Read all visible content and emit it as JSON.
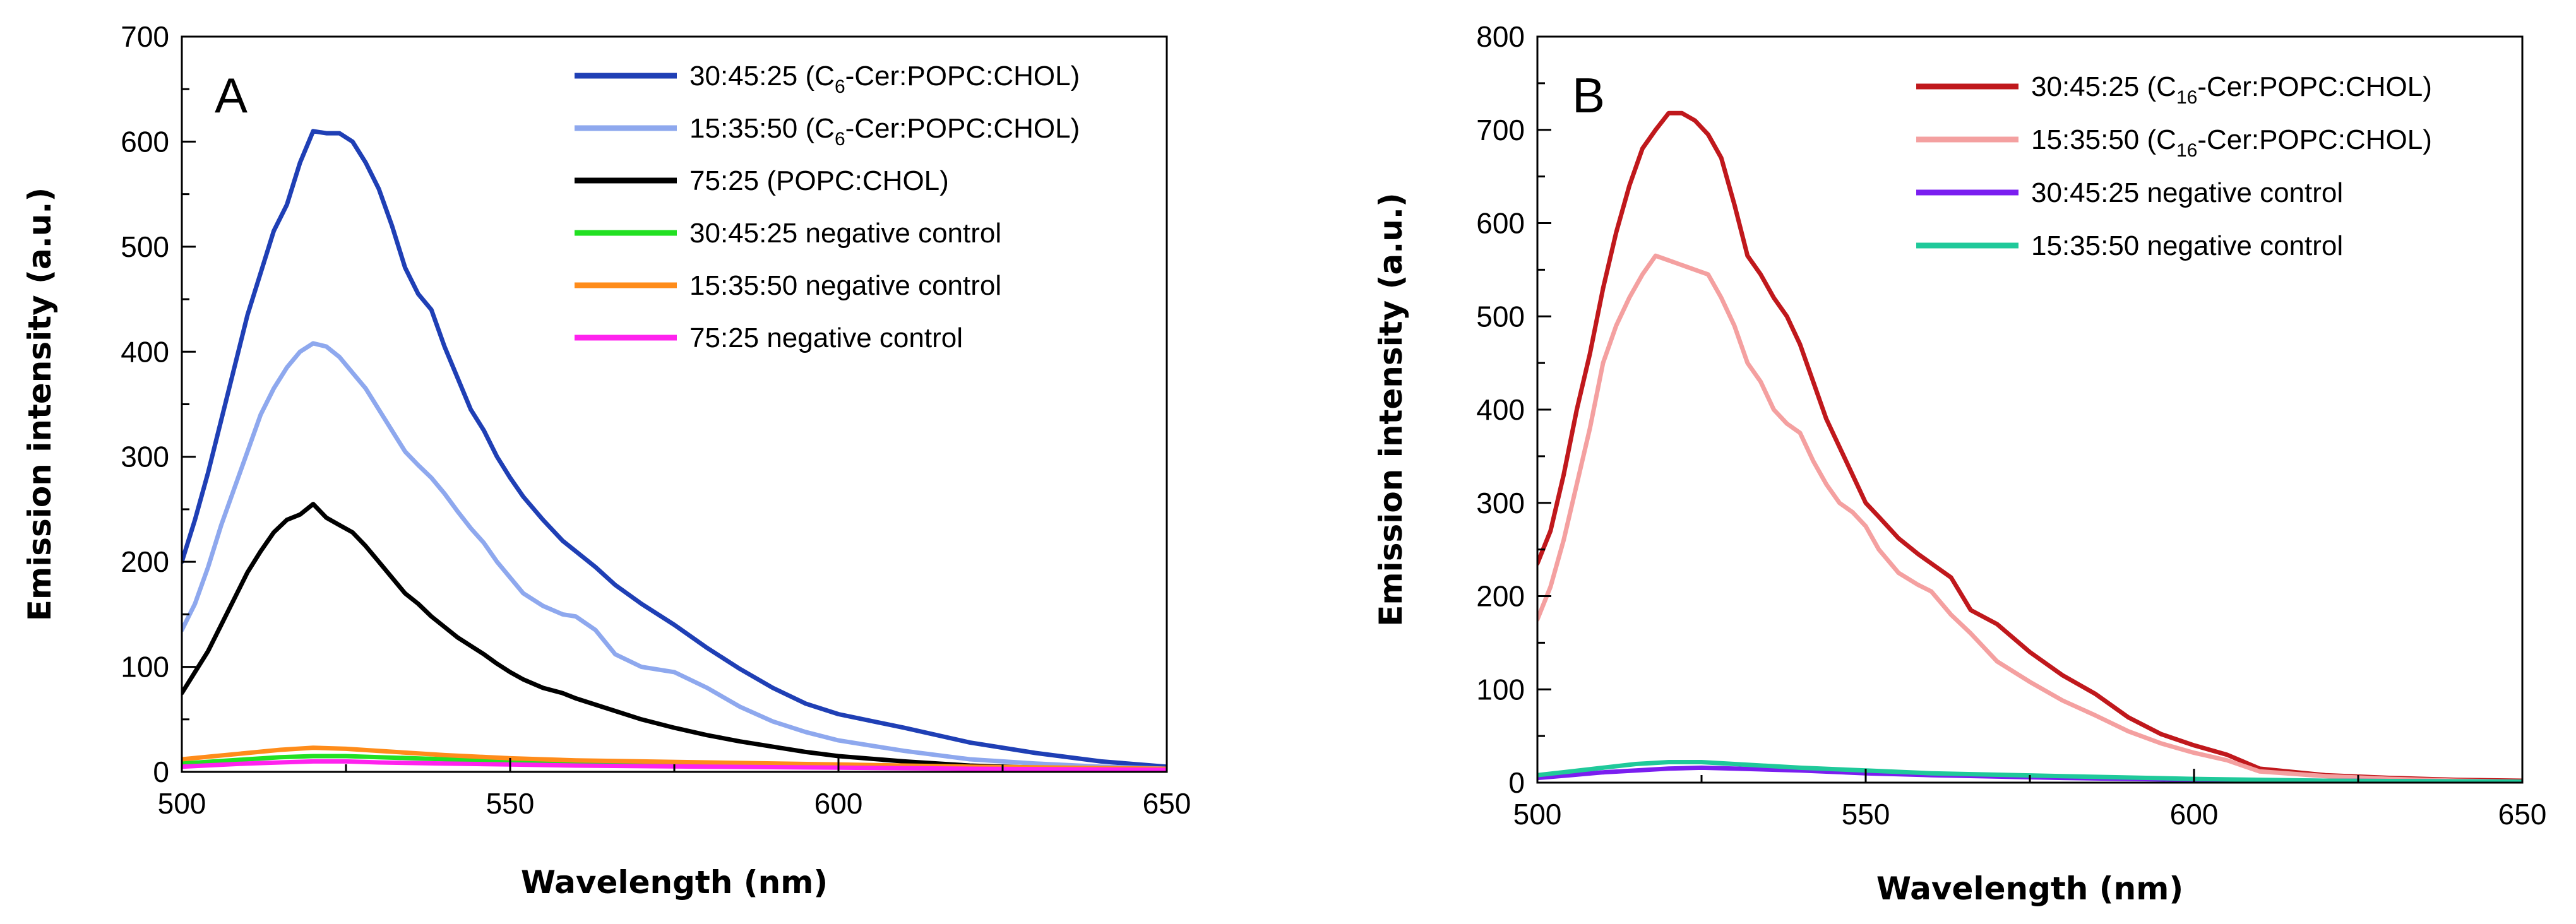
{
  "chart_data": [
    {
      "type": "line",
      "panel_label": "A",
      "xlabel": "Wavelength (nm)",
      "ylabel": "Emission intensity (a.u.)",
      "xlim": [
        500,
        650
      ],
      "ylim": [
        0,
        700
      ],
      "x_ticks": [
        500,
        550,
        600,
        650
      ],
      "y_ticks": [
        0,
        100,
        200,
        300,
        400,
        500,
        600,
        700
      ],
      "legend_position": "top-right",
      "grid": false,
      "series": [
        {
          "name": "30:45:25 (C6-Cer:POPC:CHOL)",
          "label_parts": [
            "30:45:25 (C",
            "6",
            "-Cer:POPC:CHOL)"
          ],
          "color": "#1f3fb5",
          "x": [
            500,
            502,
            504,
            506,
            508,
            510,
            512,
            514,
            516,
            518,
            520,
            522,
            524,
            526,
            528,
            530,
            532,
            534,
            536,
            538,
            540,
            542,
            544,
            546,
            548,
            550,
            552,
            555,
            558,
            560,
            563,
            566,
            570,
            575,
            580,
            585,
            590,
            595,
            600,
            610,
            620,
            630,
            640,
            650
          ],
          "y": [
            200,
            240,
            285,
            335,
            385,
            435,
            475,
            515,
            540,
            580,
            610,
            608,
            608,
            600,
            580,
            555,
            520,
            480,
            455,
            440,
            405,
            375,
            345,
            325,
            300,
            280,
            262,
            240,
            220,
            210,
            195,
            178,
            160,
            140,
            118,
            98,
            80,
            65,
            55,
            42,
            28,
            18,
            10,
            5
          ]
        },
        {
          "name": "15:35:50 (C6-Cer:POPC:CHOL)",
          "label_parts": [
            "15:35:50 (C",
            "6",
            "-Cer:POPC:CHOL)"
          ],
          "color": "#8ea8ee",
          "x": [
            500,
            502,
            504,
            506,
            508,
            510,
            512,
            514,
            516,
            518,
            520,
            522,
            524,
            526,
            528,
            530,
            532,
            534,
            536,
            538,
            540,
            542,
            544,
            546,
            548,
            550,
            552,
            555,
            558,
            560,
            563,
            566,
            570,
            575,
            580,
            585,
            590,
            595,
            600,
            610,
            620,
            630,
            640,
            650
          ],
          "y": [
            135,
            160,
            195,
            235,
            270,
            305,
            340,
            365,
            385,
            400,
            408,
            405,
            395,
            380,
            365,
            345,
            325,
            305,
            292,
            280,
            265,
            248,
            232,
            218,
            200,
            185,
            170,
            158,
            150,
            148,
            135,
            112,
            100,
            95,
            80,
            62,
            48,
            38,
            30,
            20,
            12,
            8,
            5,
            3
          ]
        },
        {
          "name": "75:25 (POPC:CHOL)",
          "label_parts": [
            "75:25 (POPC:CHOL)"
          ],
          "color": "#000000",
          "x": [
            500,
            502,
            504,
            506,
            508,
            510,
            512,
            514,
            516,
            518,
            520,
            522,
            524,
            526,
            528,
            530,
            532,
            534,
            536,
            538,
            540,
            542,
            544,
            546,
            548,
            550,
            552,
            555,
            558,
            560,
            563,
            566,
            570,
            575,
            580,
            585,
            590,
            595,
            600,
            610,
            620,
            630,
            640,
            650
          ],
          "y": [
            75,
            95,
            115,
            140,
            165,
            190,
            210,
            228,
            240,
            245,
            255,
            242,
            235,
            228,
            215,
            200,
            185,
            170,
            160,
            148,
            138,
            128,
            120,
            112,
            103,
            95,
            88,
            80,
            75,
            70,
            64,
            58,
            50,
            42,
            35,
            29,
            24,
            19,
            15,
            10,
            6,
            4,
            2,
            1
          ]
        },
        {
          "name": "30:45:25 negative control",
          "label_parts": [
            "30:45:25 negative control"
          ],
          "color": "#22e022",
          "x": [
            500,
            510,
            515,
            520,
            525,
            530,
            540,
            550,
            560,
            580,
            600,
            620,
            650
          ],
          "y": [
            8,
            12,
            14,
            15,
            15,
            14,
            12,
            10,
            9,
            7,
            5,
            3,
            2
          ]
        },
        {
          "name": "15:35:50 negative control",
          "label_parts": [
            "15:35:50 negative control"
          ],
          "color": "#ff8c1a",
          "x": [
            500,
            505,
            510,
            515,
            520,
            525,
            530,
            540,
            550,
            560,
            580,
            600,
            620,
            650
          ],
          "y": [
            12,
            15,
            18,
            21,
            23,
            22,
            20,
            16,
            13,
            11,
            9,
            7,
            5,
            3
          ]
        },
        {
          "name": "75:25 negative control",
          "label_parts": [
            "75:25 negative control"
          ],
          "color": "#ff22ee",
          "x": [
            500,
            510,
            515,
            520,
            525,
            530,
            540,
            550,
            560,
            580,
            600,
            620,
            650
          ],
          "y": [
            5,
            8,
            9,
            10,
            10,
            9,
            8,
            7,
            6,
            5,
            4,
            3,
            2
          ]
        }
      ]
    },
    {
      "type": "line",
      "panel_label": "B",
      "xlabel": "Wavelength (nm)",
      "ylabel": "Emission intensity (a.u.)",
      "xlim": [
        500,
        650
      ],
      "ylim": [
        0,
        800
      ],
      "x_ticks": [
        500,
        550,
        600,
        650
      ],
      "y_ticks": [
        0,
        100,
        200,
        300,
        400,
        500,
        600,
        700,
        800
      ],
      "legend_position": "top-right",
      "grid": false,
      "series": [
        {
          "name": "30:45:25 (C16-Cer:POPC:CHOL)",
          "label_parts": [
            "30:45:25 (C",
            "16",
            "-Cer:POPC:CHOL)"
          ],
          "color": "#c0181c",
          "x": [
            500,
            502,
            504,
            506,
            508,
            510,
            512,
            514,
            516,
            518,
            520,
            522,
            524,
            526,
            528,
            530,
            532,
            534,
            536,
            538,
            540,
            542,
            544,
            546,
            548,
            550,
            552,
            555,
            558,
            560,
            563,
            566,
            570,
            575,
            580,
            585,
            590,
            595,
            600,
            605,
            610,
            620,
            630,
            640,
            650
          ],
          "y": [
            235,
            270,
            330,
            400,
            460,
            530,
            590,
            640,
            680,
            700,
            718,
            718,
            710,
            695,
            670,
            620,
            565,
            545,
            520,
            500,
            470,
            430,
            390,
            360,
            330,
            300,
            285,
            262,
            245,
            235,
            220,
            185,
            170,
            140,
            115,
            95,
            70,
            52,
            40,
            30,
            15,
            8,
            5,
            3,
            2
          ]
        },
        {
          "name": "15:35:50 (C16-Cer:POPC:CHOL)",
          "label_parts": [
            "15:35:50 (C",
            "16",
            "-Cer:POPC:CHOL)"
          ],
          "color": "#f4a0a0",
          "x": [
            500,
            502,
            504,
            506,
            508,
            510,
            512,
            514,
            516,
            518,
            520,
            522,
            524,
            526,
            528,
            530,
            532,
            534,
            536,
            538,
            540,
            542,
            544,
            546,
            548,
            550,
            552,
            555,
            558,
            560,
            563,
            566,
            570,
            575,
            580,
            585,
            590,
            595,
            600,
            605,
            610,
            620,
            630,
            640,
            650
          ],
          "y": [
            175,
            210,
            260,
            320,
            380,
            450,
            490,
            520,
            545,
            565,
            560,
            555,
            550,
            545,
            520,
            490,
            450,
            430,
            400,
            385,
            375,
            345,
            320,
            300,
            290,
            275,
            250,
            225,
            212,
            205,
            180,
            160,
            130,
            108,
            88,
            72,
            55,
            42,
            32,
            24,
            12,
            7,
            4,
            2,
            1
          ]
        },
        {
          "name": "30:45:25 negative control",
          "label_parts": [
            "30:45:25 negative control"
          ],
          "color": "#7a1ef0",
          "x": [
            500,
            505,
            510,
            515,
            520,
            525,
            530,
            540,
            550,
            560,
            580,
            600,
            620,
            650
          ],
          "y": [
            5,
            8,
            11,
            13,
            15,
            16,
            15,
            13,
            10,
            8,
            5,
            3,
            2,
            1
          ]
        },
        {
          "name": "15:35:50 negative control",
          "label_parts": [
            "15:35:50 negative control"
          ],
          "color": "#1fc99a",
          "x": [
            500,
            505,
            510,
            515,
            520,
            525,
            530,
            540,
            550,
            560,
            580,
            600,
            620,
            650
          ],
          "y": [
            8,
            12,
            16,
            20,
            22,
            22,
            20,
            16,
            13,
            10,
            7,
            4,
            2,
            1
          ]
        }
      ]
    }
  ]
}
